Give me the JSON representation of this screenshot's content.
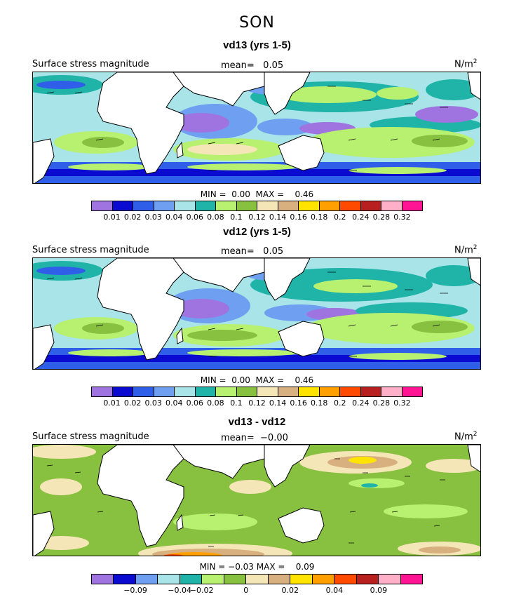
{
  "season": "SON",
  "panels": [
    {
      "title": "vd13 (yrs 1-5)",
      "field_label": "Surface stress magnitude",
      "mean_label": "mean=",
      "mean_value": "0.05",
      "units": "N/m",
      "units_exp": "2",
      "min_label": "MIN =",
      "min_value": "0.00",
      "max_label": "MAX =",
      "max_value": "0.46",
      "scale": "magnitude",
      "ticks": [
        "0.01",
        "0.02",
        "0.03",
        "0.04",
        "0.06",
        "0.08",
        "0.1",
        "0.12",
        "0.14",
        "0.16",
        "0.18",
        "0.2",
        "0.24",
        "0.28",
        "0.32"
      ]
    },
    {
      "title": "vd12 (yrs 1-5)",
      "field_label": "Surface stress magnitude",
      "mean_label": "mean=",
      "mean_value": "0.05",
      "units": "N/m",
      "units_exp": "2",
      "min_label": "MIN =",
      "min_value": "0.00",
      "max_label": "MAX =",
      "max_value": "0.46",
      "scale": "magnitude",
      "ticks": [
        "0.01",
        "0.02",
        "0.03",
        "0.04",
        "0.06",
        "0.08",
        "0.1",
        "0.12",
        "0.14",
        "0.16",
        "0.18",
        "0.2",
        "0.24",
        "0.28",
        "0.32"
      ]
    },
    {
      "title": "vd13 - vd12",
      "field_label": "Surface stress magnitude",
      "mean_label": "mean=",
      "mean_value": "−0.00",
      "units": "N/m",
      "units_exp": "2",
      "min_label": "MIN =",
      "min_value": "−0.03",
      "max_label": "MAX =",
      "max_value": "0.09",
      "scale": "difference",
      "ticks": [
        "−0.09",
        "−0.04",
        "−0.02",
        "0",
        "0.02",
        "0.04",
        "0.09"
      ]
    }
  ],
  "colors": {
    "magnitude": [
      "#9f74e0",
      "#0a0ad0",
      "#2f5fe8",
      "#6f9ff0",
      "#a8e4e8",
      "#20b4a8",
      "#b8f070",
      "#88c040",
      "#f5e6b8",
      "#d8b080",
      "#ffe400",
      "#ffa000",
      "#ff4a00",
      "#b82020",
      "#ffb0c8",
      "#ff1493"
    ],
    "difference": [
      "#9f74e0",
      "#0a0ad0",
      "#6f9ff0",
      "#a8e4e8",
      "#20b4a8",
      "#b8f070",
      "#88c040",
      "#f5e6b8",
      "#d8b080",
      "#ffe400",
      "#ffa000",
      "#ff4a00",
      "#b82020",
      "#ffb0c8",
      "#ff1493"
    ]
  }
}
